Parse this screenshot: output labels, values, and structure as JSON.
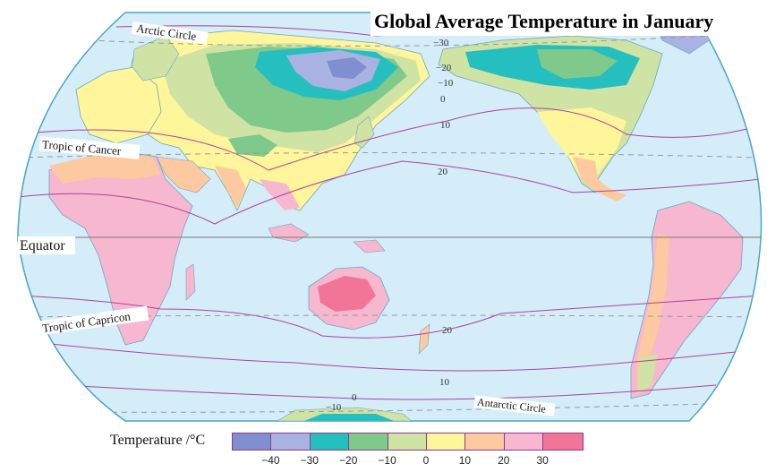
{
  "title": "Global Average Temperature in January",
  "labels": {
    "arctic_circle": "Arctic Circle",
    "tropic_cancer": "Tropic of Cancer",
    "equator": "Equator",
    "tropic_capricorn": "Tropic of Capricon",
    "antarctic_circle": "Antarctic Circle"
  },
  "isotherm_labels": [
    "−30",
    "−20",
    "−10",
    "0",
    "10",
    "20",
    "20",
    "10",
    "0",
    "−10"
  ],
  "legend": {
    "label": "Temperature /°C",
    "ticks": [
      "−40",
      "−30",
      "−20",
      "−10",
      "0",
      "10",
      "20",
      "30"
    ],
    "colors": [
      "#7f8fcf",
      "#a9b3e3",
      "#26bfbf",
      "#7fc98a",
      "#cfe3a5",
      "#fff59a",
      "#fdc9a0",
      "#f6b7cf",
      "#f27598"
    ]
  },
  "colors": {
    "ocean": "#d4edf8",
    "isotherm": "#b0419a",
    "graticule": "#888888"
  }
}
